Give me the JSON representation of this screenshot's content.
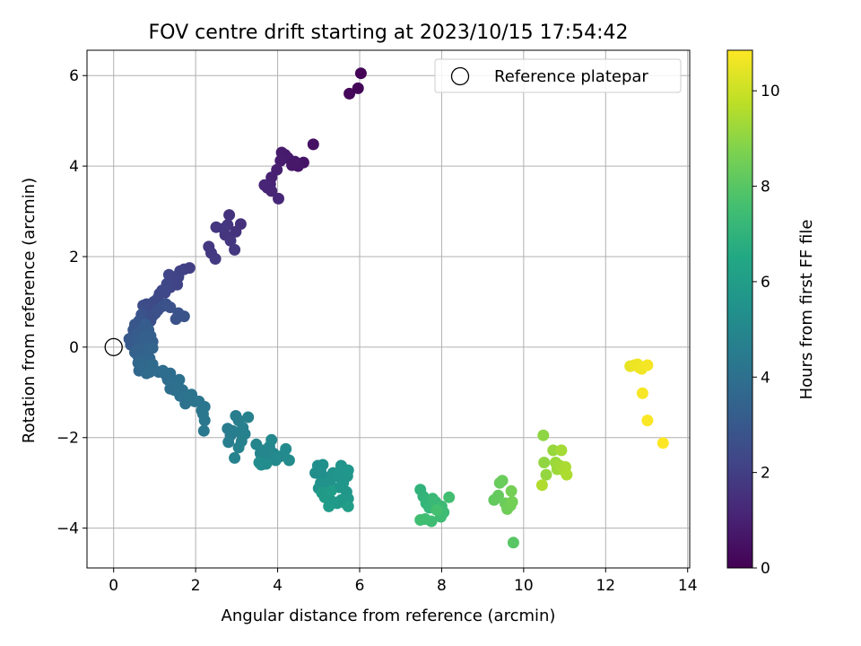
{
  "chart_data": {
    "type": "scatter",
    "title": "FOV centre drift starting at 2023/10/15 17:54:42",
    "xlabel": "Angular distance from reference (arcmin)",
    "ylabel": "Rotation from reference (arcmin)",
    "xlim": [
      -0.65,
      14.05
    ],
    "ylim": [
      -4.88,
      6.56
    ],
    "xticks": [
      0,
      2,
      4,
      6,
      8,
      10,
      12,
      14
    ],
    "yticks": [
      -4,
      -2,
      0,
      2,
      4,
      6
    ],
    "grid": true,
    "legend": {
      "position": "upper right",
      "entries": [
        "Reference platepar"
      ]
    },
    "reference_point": {
      "x": 0,
      "y": 0
    },
    "colorbar": {
      "label": "Hours from first FF file",
      "colormap": "viridis",
      "range": [
        0,
        10.85
      ],
      "ticks": [
        0,
        2,
        4,
        6,
        8,
        10
      ]
    },
    "points": [
      [
        6.03,
        6.05,
        0.05
      ],
      [
        5.96,
        5.72,
        0.12
      ],
      [
        5.75,
        5.6,
        0.2
      ],
      [
        4.87,
        4.48,
        0.5
      ],
      [
        4.63,
        4.08,
        0.6
      ],
      [
        4.5,
        4.0,
        0.65
      ],
      [
        4.42,
        4.1,
        0.7
      ],
      [
        4.35,
        4.02,
        0.72
      ],
      [
        4.25,
        4.18,
        0.75
      ],
      [
        4.18,
        4.25,
        0.78
      ],
      [
        4.1,
        4.3,
        0.8
      ],
      [
        4.07,
        4.12,
        0.85
      ],
      [
        3.98,
        3.92,
        0.95
      ],
      [
        3.85,
        3.75,
        1.0
      ],
      [
        3.82,
        3.6,
        1.05
      ],
      [
        3.75,
        3.52,
        1.1
      ],
      [
        3.68,
        3.58,
        1.12
      ],
      [
        3.85,
        3.45,
        1.15
      ],
      [
        4.02,
        3.28,
        1.2
      ],
      [
        3.1,
        2.72,
        1.5
      ],
      [
        2.98,
        2.55,
        1.55
      ],
      [
        2.82,
        2.92,
        1.6
      ],
      [
        2.78,
        2.7,
        1.62
      ],
      [
        2.72,
        2.48,
        1.65
      ],
      [
        2.68,
        2.62,
        1.68
      ],
      [
        2.5,
        2.65,
        1.7
      ],
      [
        2.85,
        2.35,
        1.72
      ],
      [
        2.95,
        2.15,
        1.75
      ],
      [
        2.32,
        2.22,
        1.78
      ],
      [
        2.38,
        2.08,
        1.8
      ],
      [
        2.48,
        1.95,
        1.82
      ],
      [
        1.85,
        1.75,
        2.0
      ],
      [
        1.72,
        1.72,
        2.05
      ],
      [
        1.62,
        1.68,
        2.1
      ],
      [
        1.58,
        1.55,
        2.12
      ],
      [
        1.55,
        1.38,
        2.15
      ],
      [
        1.48,
        1.55,
        2.18
      ],
      [
        1.42,
        1.48,
        2.2
      ],
      [
        1.38,
        1.32,
        2.22
      ],
      [
        1.35,
        1.6,
        2.25
      ],
      [
        1.3,
        1.4,
        2.28
      ],
      [
        1.25,
        1.2,
        2.3
      ],
      [
        1.18,
        1.25,
        2.32
      ],
      [
        1.12,
        1.18,
        2.35
      ],
      [
        1.08,
        1.08,
        2.38
      ],
      [
        1.05,
        0.95,
        2.4
      ],
      [
        0.98,
        1.0,
        2.42
      ],
      [
        0.92,
        0.88,
        2.45
      ],
      [
        0.86,
        0.82,
        2.48
      ],
      [
        0.8,
        0.95,
        2.5
      ],
      [
        0.72,
        0.92,
        2.52
      ],
      [
        0.78,
        0.68,
        2.55
      ],
      [
        0.9,
        0.58,
        2.58
      ],
      [
        0.96,
        0.7,
        2.6
      ],
      [
        1.02,
        0.75,
        2.62
      ],
      [
        1.08,
        0.82,
        2.65
      ],
      [
        1.18,
        0.9,
        2.68
      ],
      [
        1.28,
        0.95,
        2.7
      ],
      [
        1.38,
        0.88,
        2.72
      ],
      [
        1.52,
        0.62,
        2.75
      ],
      [
        1.58,
        0.75,
        2.78
      ],
      [
        1.72,
        0.68,
        2.8
      ],
      [
        0.68,
        0.72,
        2.82
      ],
      [
        0.62,
        0.58,
        2.85
      ],
      [
        0.58,
        0.45,
        2.88
      ],
      [
        0.52,
        0.5,
        2.9
      ],
      [
        0.48,
        0.38,
        2.92
      ],
      [
        0.55,
        0.28,
        2.95
      ],
      [
        0.45,
        0.22,
        2.98
      ],
      [
        0.38,
        0.18,
        3.0
      ],
      [
        0.42,
        0.05,
        3.05
      ],
      [
        0.5,
        0.12,
        3.1
      ],
      [
        0.6,
        0.3,
        3.12
      ],
      [
        0.7,
        0.4,
        3.15
      ],
      [
        0.78,
        0.5,
        3.18
      ],
      [
        0.85,
        0.38,
        3.2
      ],
      [
        0.65,
        0.15,
        3.22
      ],
      [
        0.75,
        0.22,
        3.25
      ],
      [
        0.9,
        0.25,
        3.28
      ],
      [
        0.95,
        0.12,
        3.3
      ],
      [
        0.82,
        0.05,
        3.32
      ],
      [
        0.7,
        -0.02,
        3.35
      ],
      [
        0.58,
        -0.05,
        3.38
      ],
      [
        0.52,
        -0.12,
        3.4
      ],
      [
        0.6,
        -0.2,
        3.42
      ],
      [
        0.72,
        -0.15,
        3.45
      ],
      [
        0.85,
        -0.08,
        3.48
      ],
      [
        0.95,
        -0.02,
        3.5
      ],
      [
        0.88,
        -0.25,
        3.52
      ],
      [
        0.78,
        -0.32,
        3.55
      ],
      [
        0.68,
        -0.28,
        3.58
      ],
      [
        0.6,
        -0.35,
        3.6
      ],
      [
        0.62,
        -0.52,
        3.62
      ],
      [
        0.75,
        -0.45,
        3.65
      ],
      [
        0.88,
        -0.55,
        3.68
      ],
      [
        0.98,
        -0.5,
        3.7
      ],
      [
        0.8,
        -0.58,
        3.72
      ],
      [
        0.95,
        -0.38,
        3.75
      ],
      [
        1.1,
        -0.55,
        3.78
      ],
      [
        1.2,
        -0.52,
        3.8
      ],
      [
        1.28,
        -0.62,
        3.82
      ],
      [
        1.38,
        -0.58,
        3.85
      ],
      [
        1.32,
        -0.72,
        3.88
      ],
      [
        1.42,
        -0.8,
        3.9
      ],
      [
        1.38,
        -0.92,
        3.92
      ],
      [
        1.48,
        -0.95,
        3.95
      ],
      [
        1.58,
        -0.88,
        3.98
      ],
      [
        1.6,
        -0.72,
        4.0
      ],
      [
        1.68,
        -0.95,
        4.02
      ],
      [
        1.62,
        -1.08,
        4.05
      ],
      [
        1.72,
        -1.12,
        4.08
      ],
      [
        1.75,
        -1.25,
        4.1
      ],
      [
        1.85,
        -1.1,
        4.12
      ],
      [
        1.9,
        -1.05,
        4.15
      ],
      [
        1.98,
        -1.2,
        4.18
      ],
      [
        2.08,
        -1.2,
        4.2
      ],
      [
        2.15,
        -1.4,
        4.22
      ],
      [
        2.22,
        -1.32,
        4.25
      ],
      [
        2.18,
        -1.48,
        4.28
      ],
      [
        2.22,
        -1.62,
        4.3
      ],
      [
        2.2,
        -1.85,
        4.32
      ],
      [
        2.78,
        -1.8,
        4.5
      ],
      [
        2.85,
        -1.95,
        4.52
      ],
      [
        2.9,
        -1.85,
        4.55
      ],
      [
        2.8,
        -2.1,
        4.58
      ],
      [
        2.98,
        -1.52,
        4.6
      ],
      [
        3.05,
        -1.62,
        4.62
      ],
      [
        3.08,
        -1.88,
        4.65
      ],
      [
        3.15,
        -1.78,
        4.68
      ],
      [
        3.2,
        -1.92,
        4.7
      ],
      [
        3.28,
        -1.55,
        4.72
      ],
      [
        3.12,
        -2.08,
        4.75
      ],
      [
        3.05,
        -2.22,
        4.78
      ],
      [
        2.95,
        -2.45,
        4.8
      ],
      [
        3.48,
        -2.15,
        4.9
      ],
      [
        3.58,
        -2.35,
        4.92
      ],
      [
        3.65,
        -2.28,
        4.95
      ],
      [
        3.72,
        -2.4,
        4.98
      ],
      [
        3.8,
        -2.2,
        5.0
      ],
      [
        3.85,
        -2.05,
        5.02
      ],
      [
        3.9,
        -2.35,
        5.05
      ],
      [
        3.95,
        -2.5,
        5.08
      ],
      [
        4.05,
        -2.42,
        5.1
      ],
      [
        4.15,
        -2.38,
        5.12
      ],
      [
        4.2,
        -2.25,
        5.15
      ],
      [
        4.28,
        -2.5,
        5.18
      ],
      [
        3.72,
        -2.58,
        5.2
      ],
      [
        3.6,
        -2.6,
        5.22
      ],
      [
        3.55,
        -2.55,
        5.25
      ],
      [
        4.92,
        -2.78,
        5.3
      ],
      [
        4.98,
        -2.62,
        5.32
      ],
      [
        5.05,
        -2.75,
        5.35
      ],
      [
        5.1,
        -2.6,
        5.38
      ],
      [
        5.15,
        -2.88,
        5.4
      ],
      [
        5.05,
        -3.0,
        5.42
      ],
      [
        5.0,
        -3.12,
        5.45
      ],
      [
        5.2,
        -3.05,
        5.48
      ],
      [
        5.28,
        -2.95,
        5.5
      ],
      [
        5.35,
        -2.78,
        5.52
      ],
      [
        5.45,
        -2.85,
        5.55
      ],
      [
        5.55,
        -2.62,
        5.58
      ],
      [
        5.62,
        -2.7,
        5.6
      ],
      [
        5.7,
        -2.85,
        5.62
      ],
      [
        5.72,
        -2.72,
        5.65
      ],
      [
        5.6,
        -3.0,
        5.68
      ],
      [
        5.5,
        -3.1,
        5.7
      ],
      [
        5.68,
        -3.2,
        5.72
      ],
      [
        5.72,
        -3.35,
        5.75
      ],
      [
        5.65,
        -3.45,
        5.78
      ],
      [
        5.55,
        -3.38,
        5.8
      ],
      [
        5.45,
        -3.45,
        5.82
      ],
      [
        5.35,
        -3.42,
        5.85
      ],
      [
        5.25,
        -3.52,
        5.88
      ],
      [
        5.15,
        -3.32,
        5.9
      ],
      [
        5.08,
        -3.22,
        5.92
      ],
      [
        5.3,
        -3.18,
        5.95
      ],
      [
        5.72,
        -3.52,
        5.98
      ],
      [
        7.48,
        -3.15,
        7.0
      ],
      [
        7.55,
        -3.3,
        7.05
      ],
      [
        7.62,
        -3.45,
        7.1
      ],
      [
        7.7,
        -3.55,
        7.15
      ],
      [
        7.78,
        -3.35,
        7.2
      ],
      [
        7.85,
        -3.42,
        7.25
      ],
      [
        7.92,
        -3.6,
        7.3
      ],
      [
        8.0,
        -3.52,
        7.35
      ],
      [
        8.05,
        -3.65,
        7.4
      ],
      [
        7.98,
        -3.75,
        7.42
      ],
      [
        7.75,
        -3.85,
        7.45
      ],
      [
        7.6,
        -3.8,
        7.48
      ],
      [
        7.48,
        -3.82,
        7.5
      ],
      [
        8.18,
        -3.32,
        7.55
      ],
      [
        7.88,
        -3.6,
        7.58
      ],
      [
        9.28,
        -3.38,
        8.2
      ],
      [
        9.38,
        -3.28,
        8.25
      ],
      [
        9.42,
        -3.0,
        8.3
      ],
      [
        9.48,
        -2.95,
        8.35
      ],
      [
        9.55,
        -3.45,
        8.4
      ],
      [
        9.6,
        -3.58,
        8.45
      ],
      [
        9.68,
        -3.5,
        8.5
      ],
      [
        9.72,
        -3.42,
        8.55
      ],
      [
        9.7,
        -3.18,
        8.58
      ],
      [
        9.75,
        -4.32,
        8.0
      ],
      [
        10.48,
        -1.95,
        9.0
      ],
      [
        10.5,
        -2.55,
        9.05
      ],
      [
        10.55,
        -2.82,
        9.1
      ],
      [
        10.72,
        -2.28,
        9.15
      ],
      [
        10.78,
        -2.55,
        9.2
      ],
      [
        10.82,
        -2.7,
        9.25
      ],
      [
        10.88,
        -2.62,
        9.3
      ],
      [
        10.92,
        -2.28,
        9.35
      ],
      [
        10.98,
        -2.72,
        9.4
      ],
      [
        11.02,
        -2.65,
        9.45
      ],
      [
        11.05,
        -2.82,
        9.5
      ],
      [
        10.45,
        -3.05,
        9.55
      ],
      [
        12.6,
        -0.42,
        10.5
      ],
      [
        12.7,
        -0.4,
        10.55
      ],
      [
        12.78,
        -0.38,
        10.6
      ],
      [
        12.82,
        -0.45,
        10.62
      ],
      [
        12.88,
        -0.48,
        10.65
      ],
      [
        13.02,
        -0.4,
        10.7
      ],
      [
        12.9,
        -1.02,
        10.75
      ],
      [
        13.02,
        -1.62,
        10.8
      ],
      [
        13.4,
        -2.12,
        10.85
      ]
    ]
  }
}
